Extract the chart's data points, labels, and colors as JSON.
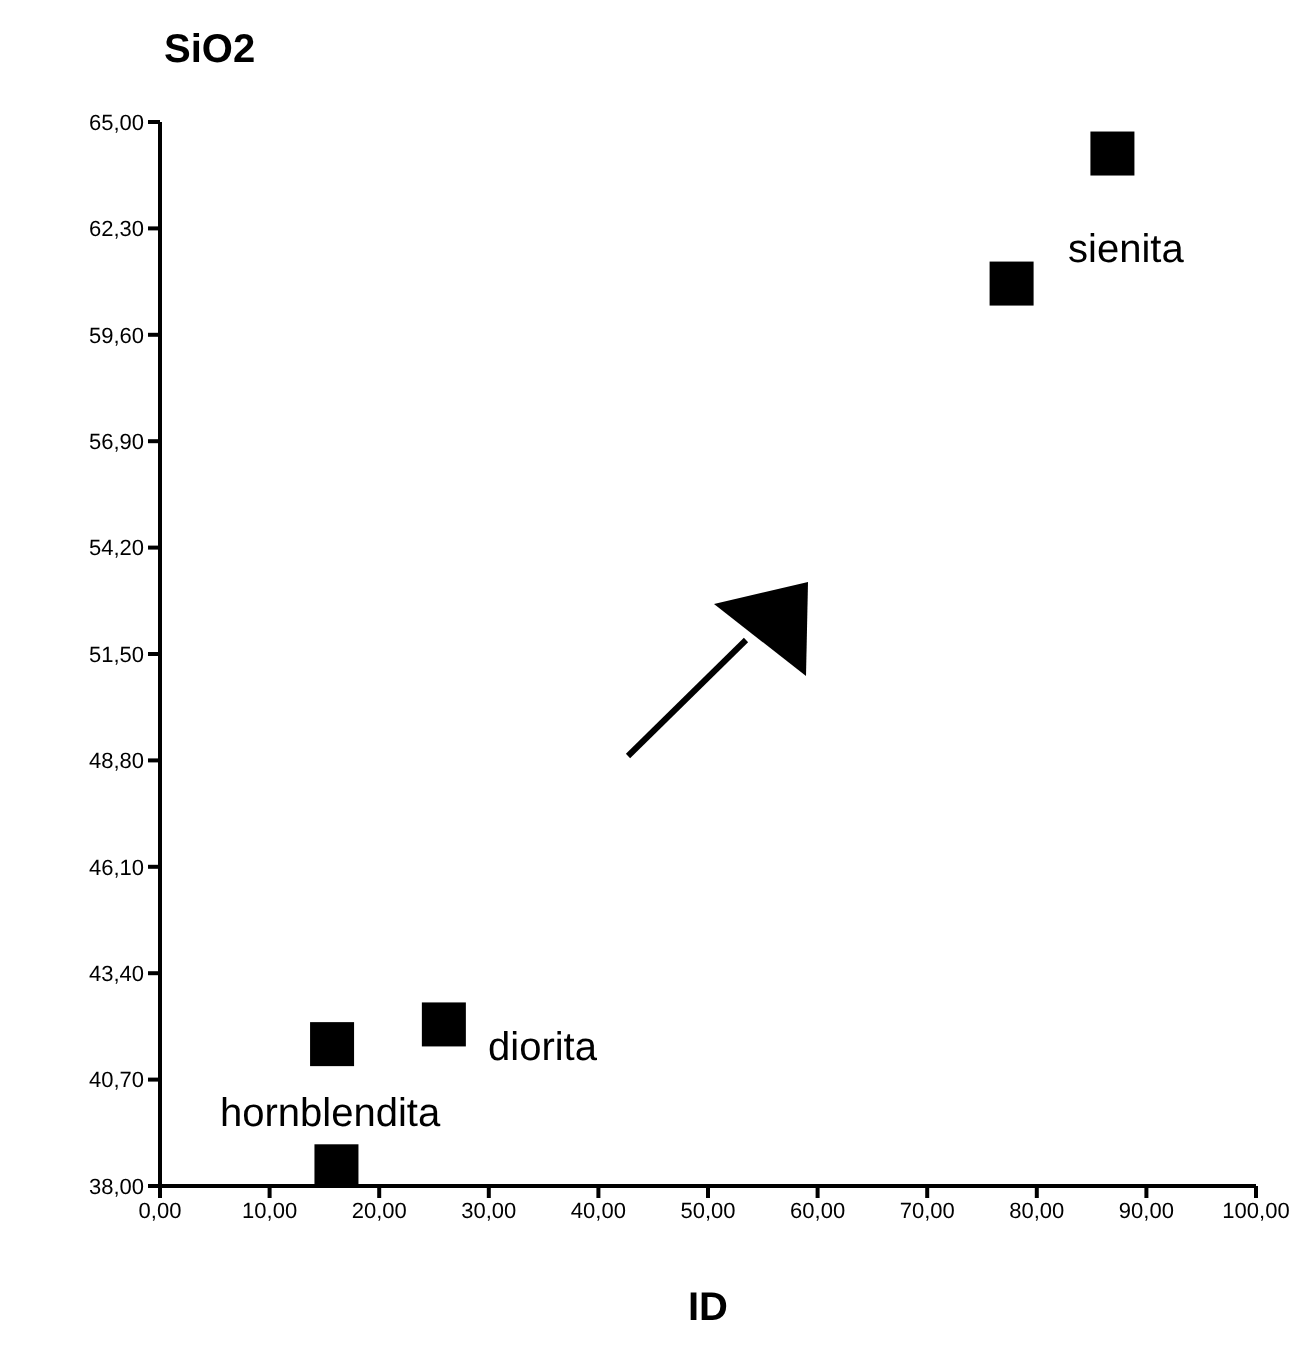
{
  "chart_data": {
    "type": "scatter",
    "xlabel": "ID",
    "ylabel": "SiO2",
    "x": [
      15.7,
      16.1,
      25.9,
      77.7,
      86.9
    ],
    "values": [
      41.6,
      38.5,
      42.1,
      60.9,
      64.2
    ],
    "color": "#000000",
    "marker": "square",
    "grid": false,
    "xlim": [
      0,
      100
    ],
    "xticks": [
      {
        "value": 0,
        "label": "0,00"
      },
      {
        "value": 10,
        "label": "10,00"
      },
      {
        "value": 20,
        "label": "20,00"
      },
      {
        "value": 30,
        "label": "30,00"
      },
      {
        "value": 40,
        "label": "40,00"
      },
      {
        "value": 50,
        "label": "50,00"
      },
      {
        "value": 60,
        "label": "60,00"
      },
      {
        "value": 70,
        "label": "70,00"
      },
      {
        "value": 80,
        "label": "80,00"
      },
      {
        "value": 90,
        "label": "90,00"
      },
      {
        "value": 100,
        "label": "100,00"
      }
    ],
    "ylim": [
      38,
      65
    ],
    "yticks": [
      {
        "value": 38,
        "label": "38,00"
      },
      {
        "value": 40.7,
        "label": "40,70"
      },
      {
        "value": 43.4,
        "label": "43,40"
      },
      {
        "value": 46.1,
        "label": "46,10"
      },
      {
        "value": 48.8,
        "label": "48,80"
      },
      {
        "value": 51.5,
        "label": "51,50"
      },
      {
        "value": 54.2,
        "label": "54,20"
      },
      {
        "value": 56.9,
        "label": "56,90"
      },
      {
        "value": 59.6,
        "label": "59,60"
      },
      {
        "value": 62.3,
        "label": "62,30"
      },
      {
        "value": 65,
        "label": "65,00"
      }
    ],
    "annotations": [
      "hornblendita",
      "diorita",
      "sienita"
    ]
  }
}
